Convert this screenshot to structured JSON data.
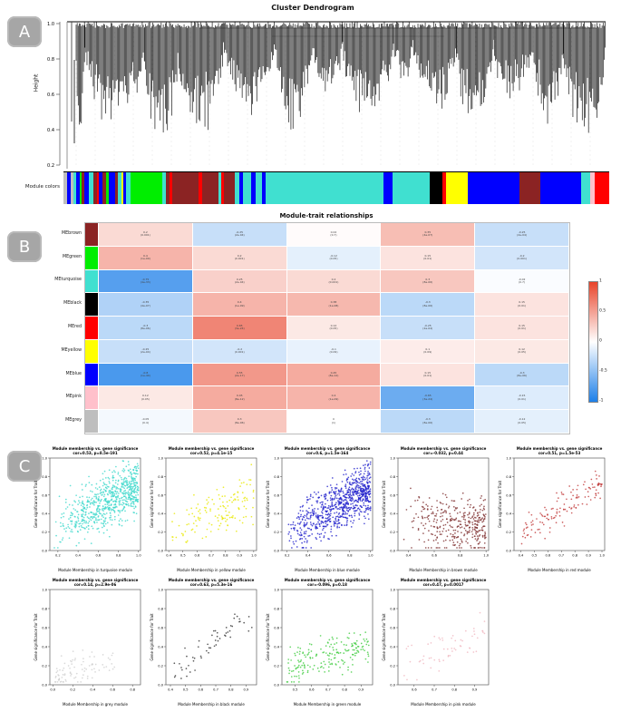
{
  "panels": {
    "a_label": "A",
    "b_label": "B",
    "c_label": "C"
  },
  "chart_data": [
    {
      "type": "dendrogram",
      "title": "Cluster Dendrogram",
      "ylabel": "Height",
      "yticks": [
        "1.0",
        "0.8",
        "0.6",
        "0.4",
        "0.2"
      ],
      "ylim": [
        0.1,
        1.0
      ],
      "annotation_label": "Module colors",
      "clusters": [
        {
          "w": 10,
          "d": 158
        },
        {
          "w": 68,
          "d": 118
        },
        {
          "w": 38,
          "d": 148
        },
        {
          "w": 52,
          "d": 128
        },
        {
          "w": 58,
          "d": 98
        },
        {
          "w": 44,
          "d": 118
        },
        {
          "w": 34,
          "d": 88
        },
        {
          "w": 58,
          "d": 108
        },
        {
          "w": 22,
          "d": 70
        },
        {
          "w": 50,
          "d": 98
        },
        {
          "w": 42,
          "d": 126
        },
        {
          "w": 44,
          "d": 92
        },
        {
          "w": 36,
          "d": 112
        },
        {
          "w": 48,
          "d": 138
        }
      ],
      "module_bar_segments": [
        [
          "#BEBEBE",
          3
        ],
        [
          "#0000FF",
          4
        ],
        [
          "#BEBEBE",
          2
        ],
        [
          "#40E0D0",
          3
        ],
        [
          "#0000FF",
          3
        ],
        [
          "#00EE00",
          2
        ],
        [
          "#8B2323",
          2
        ],
        [
          "#0000FF",
          5
        ],
        [
          "#40E0D0",
          4
        ],
        [
          "#8B2323",
          3
        ],
        [
          "#FF0000",
          2
        ],
        [
          "#0000FF",
          3
        ],
        [
          "#8B2323",
          4
        ],
        [
          "#00EE00",
          2
        ],
        [
          "#0000FF",
          6
        ],
        [
          "#8B2323",
          3
        ],
        [
          "#40E0D0",
          3
        ],
        [
          "#FFFF00",
          2
        ],
        [
          "#0000FF",
          2
        ],
        [
          "#40E0D0",
          4
        ],
        [
          "#00EE00",
          30
        ],
        [
          "#40E0D0",
          3
        ],
        [
          "#8B2323",
          4
        ],
        [
          "#FF0000",
          2
        ],
        [
          "#8B2323",
          25
        ],
        [
          "#FF0000",
          3
        ],
        [
          "#8B2323",
          15
        ],
        [
          "#40E0D0",
          3
        ],
        [
          "#FF0000",
          2
        ],
        [
          "#8B2323",
          10
        ],
        [
          "#40E0D0",
          5
        ],
        [
          "#0000FF",
          3
        ],
        [
          "#40E0D0",
          8
        ],
        [
          "#0000FF",
          4
        ],
        [
          "#40E0D0",
          6
        ],
        [
          "#0000FF",
          3
        ],
        [
          "#40E0D0",
          110
        ],
        [
          "#0000FF",
          8
        ],
        [
          "#40E0D0",
          35
        ],
        [
          "#000000",
          12
        ],
        [
          "#FF0000",
          3
        ],
        [
          "#FFFF00",
          20
        ],
        [
          "#0000FF",
          48
        ],
        [
          "#8B2323",
          20
        ],
        [
          "#0000FF",
          38
        ],
        [
          "#40E0D0",
          8
        ],
        [
          "#FFC0CB",
          4
        ],
        [
          "#FF0000",
          14
        ]
      ]
    },
    {
      "type": "heatmap",
      "title": "Module-trait relationships",
      "n_cols": 5,
      "colorbar_ticks": [
        "1",
        "0.5",
        "0",
        "-0.5",
        "-1"
      ],
      "positive_color": "#e8442a",
      "negative_color": "#1d7fe8",
      "rows": [
        {
          "label": "MEbrown",
          "color": "#8B2323",
          "values": [
            0.2,
            -0.25,
            0.02,
            0.35,
            -0.25
          ],
          "cells": [
            [
              "0.2",
              "(0.001)"
            ],
            [
              "-0.25",
              "(2e-04)"
            ],
            [
              "0.02",
              "(0.7)"
            ],
            [
              "0.35",
              "(4e-07)"
            ],
            [
              "-0.25",
              "(2e-04)"
            ]
          ]
        },
        {
          "label": "MEgreen",
          "color": "#00EE00",
          "values": [
            0.4,
            0.2,
            -0.12,
            0.15,
            -0.2
          ],
          "cells": [
            [
              "0.4",
              "(1e-09)"
            ],
            [
              "0.2",
              "(0.001)"
            ],
            [
              "-0.12",
              "(0.05)"
            ],
            [
              "0.15",
              "(0.01)"
            ],
            [
              "-0.2",
              "(0.001)"
            ]
          ]
        },
        {
          "label": "MEturquoise",
          "color": "#40E0D0",
          "values": [
            -0.75,
            0.25,
            0.2,
            0.3,
            -0.02
          ],
          "cells": [
            [
              "-0.75",
              "(4e-33)"
            ],
            [
              "0.25",
              "(2e-04)"
            ],
            [
              "0.2",
              "(0.001)"
            ],
            [
              "0.3",
              "(8e-06)"
            ],
            [
              "-0.02",
              "(0.7)"
            ]
          ]
        },
        {
          "label": "MEblack",
          "color": "#000000",
          "values": [
            -0.35,
            0.4,
            0.38,
            -0.3,
            0.15
          ],
          "cells": [
            [
              "-0.35",
              "(4e-07)"
            ],
            [
              "0.4",
              "(1e-09)"
            ],
            [
              "0.38",
              "(1e-08)"
            ],
            [
              "-0.3",
              "(8e-06)"
            ],
            [
              "0.15",
              "(0.01)"
            ]
          ]
        },
        {
          "label": "MEred",
          "color": "#FF0000",
          "values": [
            -0.3,
            0.65,
            0.12,
            -0.25,
            0.15
          ],
          "cells": [
            [
              "-0.3",
              "(8e-06)"
            ],
            [
              "0.65",
              "(3e-24)"
            ],
            [
              "0.12",
              "(0.05)"
            ],
            [
              "-0.25",
              "(2e-04)"
            ],
            [
              "0.15",
              "(0.01)"
            ]
          ]
        },
        {
          "label": "MEyellow",
          "color": "#FFFF00",
          "values": [
            -0.25,
            -0.2,
            -0.1,
            0.1,
            0.12
          ],
          "cells": [
            [
              "-0.25",
              "(2e-04)"
            ],
            [
              "-0.2",
              "(0.001)"
            ],
            [
              "-0.1",
              "(0.09)"
            ],
            [
              "0.1",
              "(0.09)"
            ],
            [
              "0.12",
              "(0.05)"
            ]
          ]
        },
        {
          "label": "MEblue",
          "color": "#0000FF",
          "values": [
            -0.8,
            0.55,
            0.45,
            0.15,
            -0.3
          ],
          "cells": [
            [
              "-0.8",
              "(1e-40)"
            ],
            [
              "0.55",
              "(2e-17)"
            ],
            [
              "0.45",
              "(8e-12)"
            ],
            [
              "0.15",
              "(0.01)"
            ],
            [
              "-0.3",
              "(8e-06)"
            ]
          ]
        },
        {
          "label": "MEpink",
          "color": "#FFC0CB",
          "values": [
            0.12,
            0.45,
            0.4,
            -0.65,
            -0.15
          ],
          "cells": [
            [
              "0.12",
              "(0.05)"
            ],
            [
              "0.45",
              "(8e-12)"
            ],
            [
              "0.4",
              "(1e-09)"
            ],
            [
              "-0.65",
              "(3e-24)"
            ],
            [
              "-0.15",
              "(0.01)"
            ]
          ]
        },
        {
          "label": "MEgrey",
          "color": "#BEBEBE",
          "values": [
            -0.05,
            0.3,
            0.0,
            -0.3,
            -0.12
          ],
          "cells": [
            [
              "-0.05",
              "(0.4)"
            ],
            [
              "0.3",
              "(8e-06)"
            ],
            [
              "0",
              "(1)"
            ],
            [
              "-0.3",
              "(8e-06)"
            ],
            [
              "-0.12",
              "(0.05)"
            ]
          ]
        }
      ]
    },
    {
      "type": "scatter",
      "ylabel": "Gene significance for Trait",
      "yticks": [
        0.0,
        0.2,
        0.4,
        0.6,
        0.8,
        1.0
      ],
      "plots": [
        {
          "title": "Module membership vs. gene significance",
          "subtitle": "cor=0.53, p=8.5e-191",
          "xlabel": "Module Membership in turquoise module",
          "module": "turquoise",
          "color": "#3FD8CC",
          "n": 700,
          "xdomain": [
            0.12,
            1.02
          ],
          "xticks": [
            0.2,
            0.4,
            0.6,
            0.8,
            1.0
          ],
          "gen": {
            "xgen": [
              0.15,
              1.0
            ],
            "skew": 0.55,
            "y0": 0.25,
            "slope": 0.45,
            "spread": 0.28,
            "seed": 11
          }
        },
        {
          "title": "Module membership vs. gene significance",
          "subtitle": "cor=0.52, p=4.1e-15",
          "xlabel": "Module Membership in yellow module",
          "module": "yellow",
          "color": "#E8E800",
          "n": 140,
          "xdomain": [
            0.38,
            1.02
          ],
          "xticks": [
            0.4,
            0.5,
            0.6,
            0.7,
            0.8,
            0.9,
            1.0
          ],
          "gen": {
            "xgen": [
              0.42,
              1.0
            ],
            "skew": 0.8,
            "y0": 0.2,
            "slope": 0.42,
            "spread": 0.26,
            "seed": 22
          }
        },
        {
          "title": "Module membership vs. gene significance",
          "subtitle": "cor=0.6, p=1.5e-164",
          "xlabel": "Module Membership in blue module",
          "module": "blue",
          "color": "#2222CC",
          "n": 800,
          "xdomain": [
            0.15,
            1.02
          ],
          "xticks": [
            0.2,
            0.4,
            0.6,
            0.8,
            1.0
          ],
          "gen": {
            "xgen": [
              0.2,
              1.0
            ],
            "skew": 0.6,
            "y0": 0.18,
            "slope": 0.5,
            "spread": 0.26,
            "seed": 33
          }
        },
        {
          "title": "Module membership vs. gene significance",
          "subtitle": "cor=-0.032, p=0.44",
          "xlabel": "Module Membership in brown module",
          "module": "brown",
          "color": "#7E3030",
          "n": 350,
          "xdomain": [
            0.32,
            1.02
          ],
          "xticks": [
            0.4,
            0.6,
            0.8,
            1.0
          ],
          "gen": {
            "xgen": [
              0.35,
              1.0
            ],
            "skew": 0.6,
            "y0": 0.32,
            "slope": -0.03,
            "spread": 0.3,
            "seed": 44
          }
        },
        {
          "title": "Module membership vs. gene significance",
          "subtitle": "cor=0.51, p=1.5e-53",
          "xlabel": "Module Membership in red module",
          "module": "red",
          "color": "#C23B3B",
          "n": 130,
          "xdomain": [
            0.35,
            1.02
          ],
          "xticks": [
            0.4,
            0.5,
            0.6,
            0.7,
            0.8,
            0.9,
            1.0
          ],
          "gen": {
            "xgen": [
              0.38,
              1.0
            ],
            "skew": 0.8,
            "y0": 0.18,
            "slope": 0.55,
            "spread": 0.17,
            "seed": 55
          }
        },
        {
          "title": "Module membership vs. gene significance",
          "subtitle": "cor=0.14, p=2.9e-06",
          "xlabel": "Module Membership in grey module",
          "module": "grey",
          "color": "#CFCFCF",
          "n": 85,
          "xdomain": [
            -0.03,
            0.88
          ],
          "xticks": [
            0.0,
            0.2,
            0.4,
            0.6,
            0.8
          ],
          "gen": {
            "xgen": [
              0.02,
              0.62
            ],
            "skew": 1.4,
            "y0": 0.12,
            "slope": 0.15,
            "spread": 0.15,
            "seed": 66
          }
        },
        {
          "title": "Module membership vs. gene significance",
          "subtitle": "cor=0.63, p=5.3e-16",
          "xlabel": "Module Membership in black module",
          "module": "black",
          "color": "#333333",
          "n": 55,
          "xdomain": [
            0.37,
            0.97
          ],
          "xticks": [
            0.4,
            0.5,
            0.6,
            0.7,
            0.8,
            0.9
          ],
          "gen": {
            "xgen": [
              0.42,
              0.95
            ],
            "skew": 0.9,
            "y0": 0.15,
            "slope": 0.6,
            "spread": 0.15,
            "seed": 77
          }
        },
        {
          "title": "Module membership vs. gene significance",
          "subtitle": "cor=-0.096, p=0.18",
          "xlabel": "Module Membership in green module",
          "module": "green",
          "color": "#3ECC3E",
          "n": 190,
          "xdomain": [
            0.42,
            0.97
          ],
          "xticks": [
            0.5,
            0.6,
            0.7,
            0.8,
            0.9
          ],
          "gen": {
            "xgen": [
              0.45,
              0.95
            ],
            "skew": 0.9,
            "y0": 0.18,
            "slope": 0.22,
            "spread": 0.2,
            "seed": 88
          }
        },
        {
          "title": "Module membership vs. gene significance",
          "subtitle": "cor=0.47, p=0.0017",
          "xlabel": "Module Membership in pink module",
          "module": "pink",
          "color": "#F0B6BF",
          "n": 60,
          "xdomain": [
            0.52,
            0.97
          ],
          "xticks": [
            0.6,
            0.7,
            0.8,
            0.9
          ],
          "gen": {
            "xgen": [
              0.55,
              0.95
            ],
            "skew": 0.9,
            "y0": 0.22,
            "slope": 0.3,
            "spread": 0.22,
            "seed": 99
          }
        }
      ]
    }
  ]
}
